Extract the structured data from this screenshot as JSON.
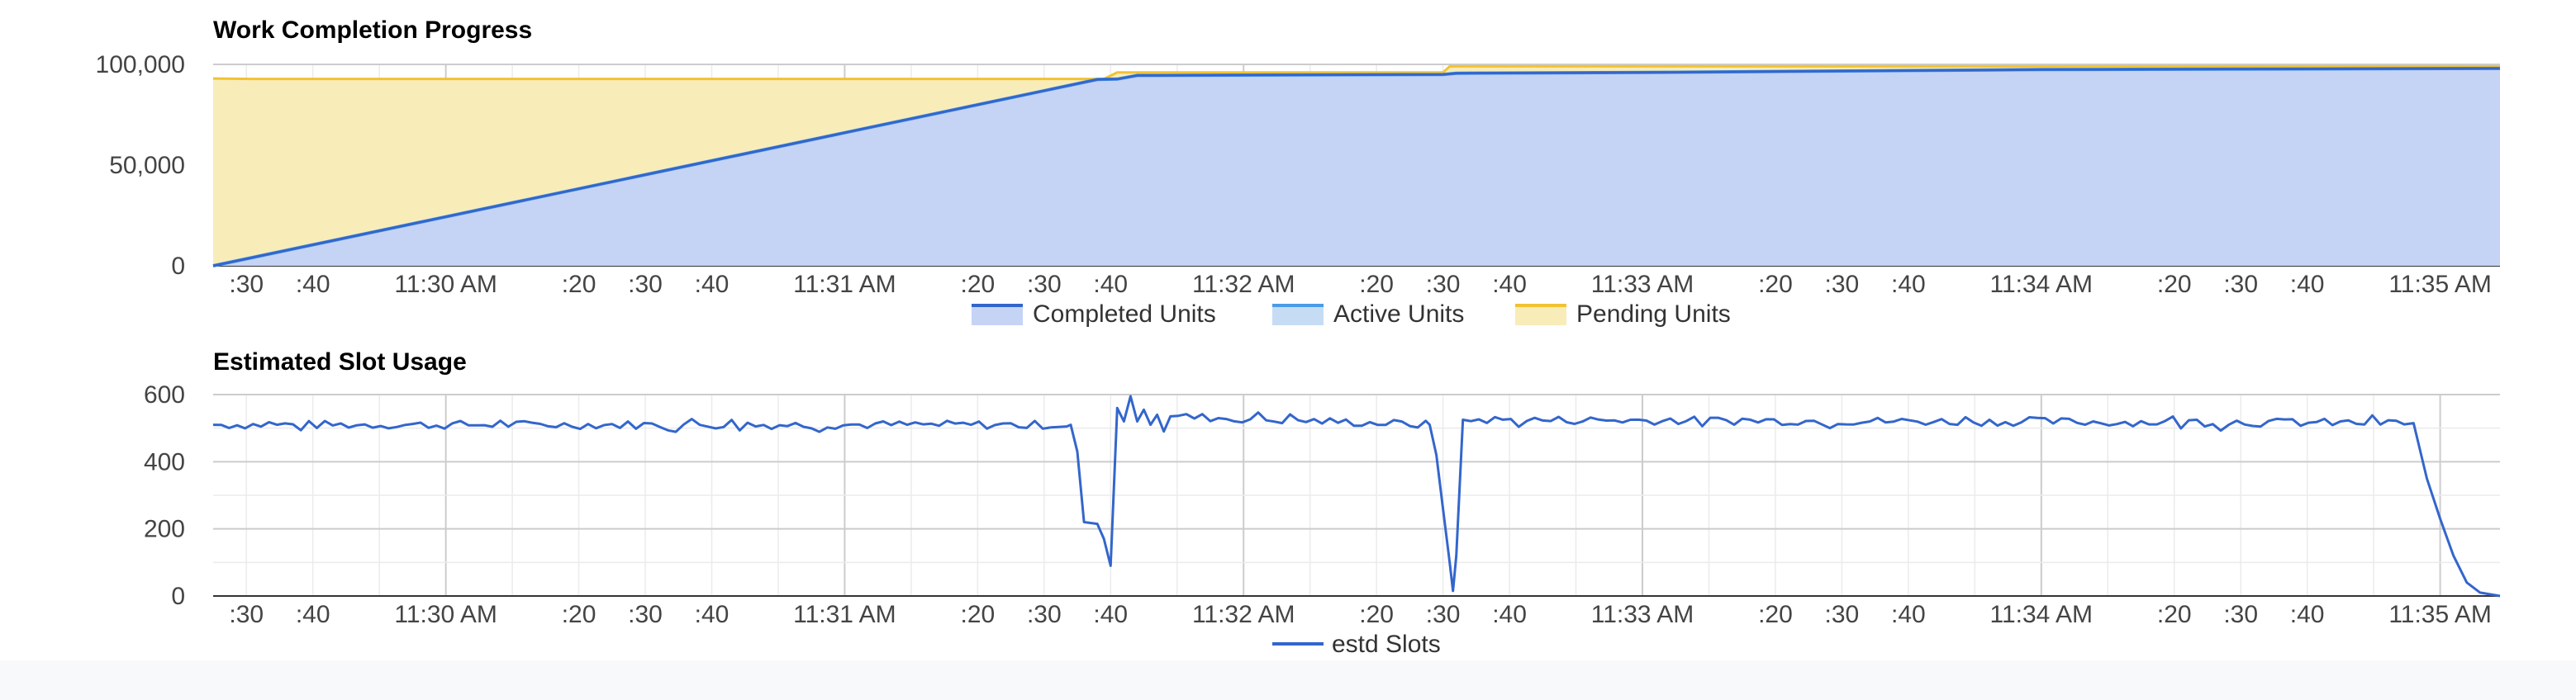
{
  "chart_data": [
    {
      "type": "area",
      "title": "Work Completion Progress",
      "xlabel": "",
      "ylabel": "",
      "x_range": [
        "11:29:25",
        "11:35:09"
      ],
      "ylim": [
        0,
        100000
      ],
      "y_ticks": [
        0,
        50000,
        100000
      ],
      "y_tick_labels": [
        "0",
        "50,000",
        "100,000"
      ],
      "x_ticks": [
        {
          "t": "11:29:30",
          "label": ":30"
        },
        {
          "t": "11:29:40",
          "label": ":40"
        },
        {
          "t": "11:30:00",
          "label": "11:30 AM"
        },
        {
          "t": "11:30:20",
          "label": ":20"
        },
        {
          "t": "11:30:30",
          "label": ":30"
        },
        {
          "t": "11:30:40",
          "label": ":40"
        },
        {
          "t": "11:31:00",
          "label": "11:31 AM"
        },
        {
          "t": "11:31:20",
          "label": ":20"
        },
        {
          "t": "11:31:30",
          "label": ":30"
        },
        {
          "t": "11:31:40",
          "label": ":40"
        },
        {
          "t": "11:32:00",
          "label": "11:32 AM"
        },
        {
          "t": "11:32:20",
          "label": ":20"
        },
        {
          "t": "11:32:30",
          "label": ":30"
        },
        {
          "t": "11:32:40",
          "label": ":40"
        },
        {
          "t": "11:33:00",
          "label": "11:33 AM"
        },
        {
          "t": "11:33:20",
          "label": ":20"
        },
        {
          "t": "11:33:30",
          "label": ":30"
        },
        {
          "t": "11:33:40",
          "label": ":40"
        },
        {
          "t": "11:34:00",
          "label": "11:34 AM"
        },
        {
          "t": "11:34:20",
          "label": ":20"
        },
        {
          "t": "11:34:30",
          "label": ":30"
        },
        {
          "t": "11:34:40",
          "label": ":40"
        },
        {
          "t": "11:35:00",
          "label": "11:35 AM"
        }
      ],
      "grid": true,
      "legend_position": "bottom",
      "series": [
        {
          "name": "Completed Units",
          "color": "#3366cc",
          "fill": "#c5d3f5",
          "x": [
            "11:29:25",
            "11:31:38",
            "11:31:41",
            "11:31:44",
            "11:32:30",
            "11:32:32",
            "11:33:00",
            "11:34:00",
            "11:35:09"
          ],
          "values": [
            0,
            92500,
            92700,
            94500,
            95000,
            95600,
            96000,
            97400,
            98000
          ]
        },
        {
          "name": "Active Units",
          "color": "#4a9be8",
          "fill": "#c6dcf4",
          "x": [
            "11:29:25",
            "11:31:38",
            "11:31:41",
            "11:31:44",
            "11:32:30",
            "11:32:32",
            "11:33:00",
            "11:34:00",
            "11:35:09"
          ],
          "values": [
            0,
            92500,
            92700,
            94500,
            95000,
            95600,
            96000,
            97400,
            98000
          ]
        },
        {
          "name": "Pending Units",
          "color": "#f1c232",
          "fill": "#f8ecb9",
          "x": [
            "11:29:25",
            "11:29:31",
            "11:31:39",
            "11:31:41",
            "11:32:30",
            "11:32:31",
            "11:35:09"
          ],
          "values": [
            93000,
            92800,
            92800,
            96000,
            96000,
            99000,
            99000
          ]
        }
      ]
    },
    {
      "type": "line",
      "title": "Estimated Slot Usage",
      "xlabel": "",
      "ylabel": "",
      "x_range": [
        "11:29:25",
        "11:35:09"
      ],
      "ylim": [
        0,
        600
      ],
      "y_ticks": [
        0,
        200,
        400,
        600
      ],
      "y_tick_labels": [
        "0",
        "200",
        "400",
        "600"
      ],
      "grid": true,
      "legend_position": "bottom",
      "series": [
        {
          "name": "estd Slots",
          "color": "#3366cc",
          "x": [
            "11:29:25",
            "11:31:34",
            "11:31:35",
            "11:31:36",
            "11:31:38",
            "11:31:39",
            "11:31:40",
            "11:31:41",
            "11:31:42",
            "11:31:43",
            "11:31:44",
            "11:31:45",
            "11:31:46",
            "11:31:47",
            "11:31:48",
            "11:31:49",
            "11:32:28",
            "11:32:29",
            "11:32:30",
            "11:32:31",
            "11:32:31.5",
            "11:32:32",
            "11:32:33",
            "11:34:56",
            "11:34:58",
            "11:35:00",
            "11:35:02",
            "11:35:04",
            "11:35:06",
            "11:35:09"
          ],
          "values": [
            510,
            510,
            430,
            220,
            215,
            170,
            90,
            560,
            520,
            595,
            520,
            555,
            510,
            540,
            490,
            535,
            510,
            420,
            260,
            100,
            15,
            120,
            525,
            515,
            350,
            230,
            120,
            40,
            10,
            0
          ],
          "jitter_amplitude": 25
        }
      ]
    }
  ]
}
